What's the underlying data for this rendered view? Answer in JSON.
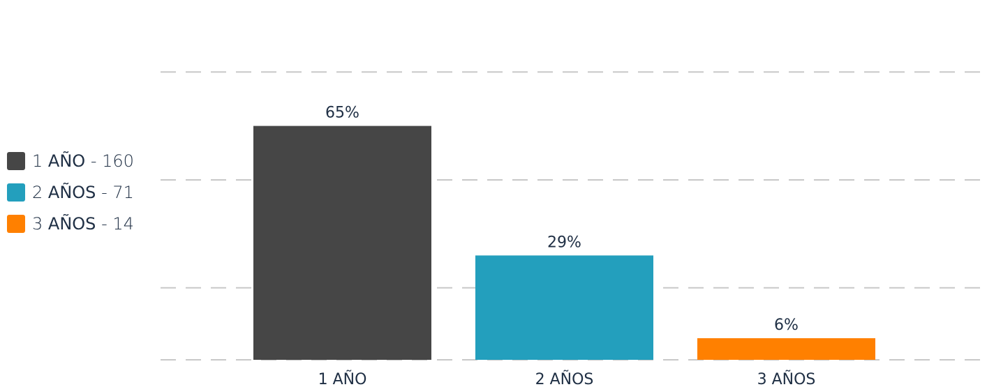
{
  "chart_data": {
    "type": "bar",
    "categories": [
      "1 AÑO",
      "2 AÑOS",
      "3 AÑOS"
    ],
    "values": [
      65,
      29,
      6
    ],
    "value_labels": [
      "65%",
      "29%",
      "6%"
    ],
    "colors": [
      "#464646",
      "#239fbd",
      "#ff8000"
    ],
    "ylim": [
      0,
      100
    ],
    "gridlines": [
      0,
      20,
      50,
      80
    ],
    "grid_color": "#c8c8c8",
    "title": "",
    "xlabel": "",
    "ylabel": "",
    "legend": {
      "placement": "left",
      "items": [
        {
          "num": "1",
          "name": "AÑO",
          "count": "- 160"
        },
        {
          "num": "2",
          "name": "AÑOS",
          "count": "- 71"
        },
        {
          "num": "3",
          "name": "AÑOS",
          "count": "- 14"
        }
      ]
    }
  }
}
